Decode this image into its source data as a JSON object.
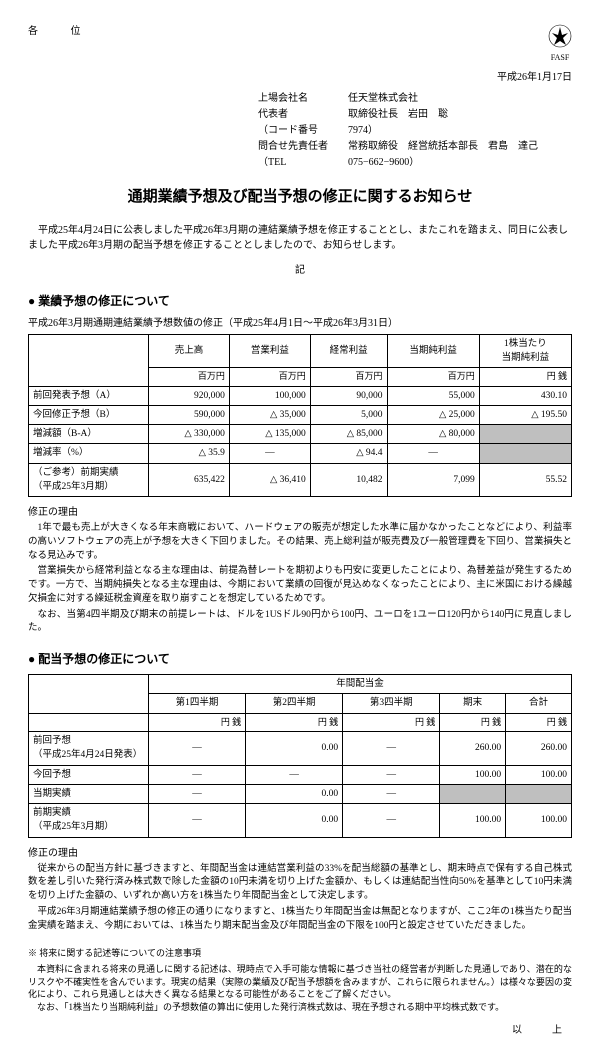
{
  "header": {
    "kakui": "各 位",
    "date": "平成26年1月17日",
    "fasf_label": "FASF",
    "rows": [
      {
        "label": "上場会社名",
        "value": "任天堂株式会社"
      },
      {
        "label": "代表者",
        "value": "取締役社長　岩田　聡"
      },
      {
        "label": "（コード番号",
        "value": "7974）"
      },
      {
        "label": "問合せ先責任者",
        "value": "常務取締役　経営統括本部長　君島　達己"
      },
      {
        "label": "（TEL",
        "value": "075−662−9600）"
      }
    ]
  },
  "title": "通期業績予想及び配当予想の修正に関するお知らせ",
  "intro": "平成25年4月24日に公表しました平成26年3月期の連結業績予想を修正することとし、またこれを踏まえ、同日に公表しました平成26年3月期の配当予想を修正することとしましたので、お知らせします。",
  "ki": "記",
  "section1": {
    "head": "● 業績予想の修正について",
    "sub": "平成26年3月期通期連結業績予想数値の修正（平成25年4月1日〜平成26年3月31日）",
    "cols": [
      "売上高",
      "営業利益",
      "経常利益",
      "当期純利益",
      "1株当たり\n当期純利益"
    ],
    "units": [
      "百万円",
      "百万円",
      "百万円",
      "百万円",
      "円 銭"
    ],
    "rows": [
      {
        "label": "前回発表予想（A）",
        "v": [
          "920,000",
          "100,000",
          "90,000",
          "55,000",
          "430.10"
        ]
      },
      {
        "label": "今回修正予想（B）",
        "v": [
          "590,000",
          "△ 35,000",
          "5,000",
          "△ 25,000",
          "△ 195.50"
        ]
      },
      {
        "label": "増減額（B-A）",
        "v": [
          "△ 330,000",
          "△ 135,000",
          "△ 85,000",
          "△ 80,000",
          ""
        ],
        "shadeLast": true
      },
      {
        "label": "増減率（%）",
        "v": [
          "△ 35.9",
          "—",
          "△ 94.4",
          "—",
          ""
        ],
        "shadeLast": true
      },
      {
        "label": "（ご参考）前期実績\n（平成25年3月期）",
        "v": [
          "635,422",
          "△ 36,410",
          "10,482",
          "7,099",
          "55.52"
        ]
      }
    ],
    "reason_head": "修正の理由",
    "reason": [
      "1年で最も売上が大きくなる年末商戦において、ハードウェアの販売が想定した水準に届かなかったことなどにより、利益率の高いソフトウェアの売上が予想を大きく下回りました。その結果、売上総利益が販売費及び一般管理費を下回り、営業損失となる見込みです。",
      "営業損失から経常利益となる主な理由は、前提為替レートを期初よりも円安に変更したことにより、為替差益が発生するためです。一方で、当期純損失となる主な理由は、今期において業績の回復が見込めなくなったことにより、主に米国における繰越欠損金に対する繰延税金資産を取り崩すことを想定しているためです。",
      "なお、当第4四半期及び期末の前提レートは、ドルを1USドル90円から100円、ユーロを1ユーロ120円から140円に見直しました。"
    ]
  },
  "section2": {
    "head": "● 配当予想の修正について",
    "group": "年間配当金",
    "cols": [
      "第1四半期",
      "第2四半期",
      "第3四半期",
      "期末",
      "合計"
    ],
    "unit": "円 銭",
    "rows": [
      {
        "label": "前回予想\n（平成25年4月24日発表）",
        "v": [
          "—",
          "0.00",
          "—",
          "260.00",
          "260.00"
        ]
      },
      {
        "label": "今回予想",
        "v": [
          "—",
          "—",
          "—",
          "100.00",
          "100.00"
        ]
      },
      {
        "label": "当期実績",
        "v": [
          "—",
          "0.00",
          "—",
          "",
          ""
        ],
        "shade": [
          3,
          4
        ]
      },
      {
        "label": "前期実績\n（平成25年3月期）",
        "v": [
          "—",
          "0.00",
          "—",
          "100.00",
          "100.00"
        ]
      }
    ],
    "reason_head": "修正の理由",
    "reason": [
      "従来からの配当方針に基づきますと、年間配当金は連結営業利益の33%を配当総額の基準とし、期末時点で保有する自己株式数を差し引いた発行済み株式数で除した金額の10円未満を切り上げた金額か、もしくは連結配当性向50%を基準として10円未満を切り上げた金額の、いずれか高い方を1株当たり年間配当金として決定します。",
      "平成26年3月期連結業績予想の修正の通りになりますと、1株当たり年間配当金は無配となりますが、ここ2年の1株当たり配当金実績を踏まえ、今期においては、1株当たり期末配当金及び年間配当金の下限を100円と設定させていただきました。"
    ]
  },
  "note_head": "※ 将来に関する記述等についての注意事項",
  "note": [
    "本資料に含まれる将来の見通しに関する記述は、現時点で入手可能な情報に基づき当社の経営者が判断した見通しであり、潜在的なリスクや不確実性を含んでいます。現実の結果（実際の業績及び配当予想額を含みますが、これらに限られません。）は様々な要因の変化により、これら見通しとは大きく異なる結果となる可能性があることをご了解ください。",
    "なお、「1株当たり当期純利益」の予想数値の算出に使用した発行済株式数は、現在予想される期中平均株式数です。"
  ],
  "ijo": "以　上"
}
